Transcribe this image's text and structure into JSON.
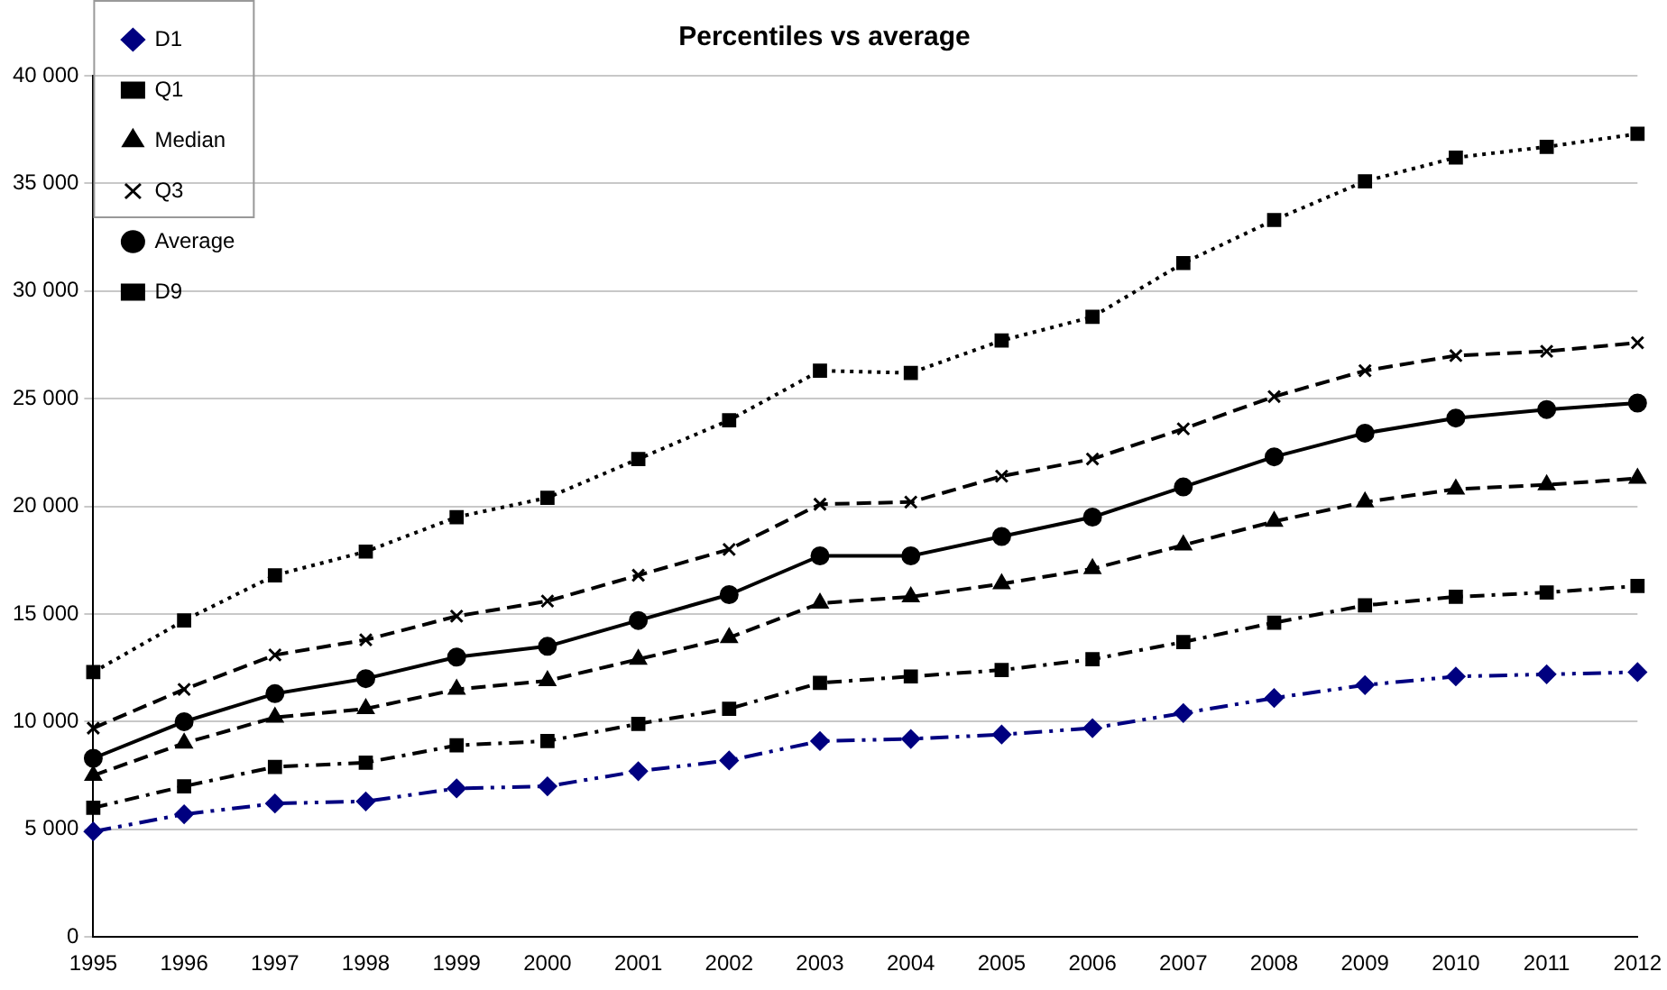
{
  "chart_data": {
    "type": "line",
    "title": "Percentiles vs average",
    "categories": [
      "1995",
      "1996",
      "1997",
      "1998",
      "1999",
      "2000",
      "2001",
      "2002",
      "2003",
      "2004",
      "2005",
      "2006",
      "2007",
      "2008",
      "2009",
      "2010",
      "2011",
      "2012"
    ],
    "series": [
      {
        "name": "D1",
        "color": "#000080",
        "marker": "diamond",
        "line_style": "dashdotdot",
        "values": [
          4900,
          5700,
          6200,
          6300,
          6900,
          7000,
          7700,
          8200,
          9100,
          9200,
          9400,
          9700,
          10400,
          11100,
          11700,
          12100,
          12200,
          12300
        ]
      },
      {
        "name": "Q1",
        "color": "#000000",
        "marker": "square",
        "line_style": "dashdot",
        "values": [
          6000,
          7000,
          7900,
          8100,
          8900,
          9100,
          9900,
          10600,
          11800,
          12100,
          12400,
          12900,
          13700,
          14600,
          15400,
          15800,
          16000,
          16300
        ]
      },
      {
        "name": "Median",
        "color": "#000000",
        "marker": "triangle",
        "line_style": "dashed",
        "values": [
          7500,
          9000,
          10200,
          10600,
          11500,
          11900,
          12900,
          13900,
          15500,
          15800,
          16400,
          17100,
          18200,
          19300,
          20200,
          20800,
          21000,
          21300
        ]
      },
      {
        "name": "Q3",
        "color": "#000000",
        "marker": "cross",
        "line_style": "dashed",
        "values": [
          9700,
          11500,
          13100,
          13800,
          14900,
          15600,
          16800,
          18000,
          20100,
          20200,
          21400,
          22200,
          23600,
          25100,
          26300,
          27000,
          27200,
          27600
        ]
      },
      {
        "name": "Average",
        "color": "#000000",
        "marker": "circle",
        "line_style": "solid",
        "values": [
          8300,
          10000,
          11300,
          12000,
          13000,
          13500,
          14700,
          15900,
          17700,
          17700,
          18600,
          19500,
          20900,
          22300,
          23400,
          24100,
          24500,
          24800
        ]
      },
      {
        "name": "D9",
        "color": "#000000",
        "marker": "square",
        "line_style": "dotted",
        "values": [
          12300,
          14700,
          16800,
          17900,
          19500,
          20400,
          22200,
          24000,
          26300,
          26200,
          27700,
          28800,
          31300,
          33300,
          35100,
          36200,
          36700,
          37300
        ]
      }
    ],
    "ylim": [
      0,
      40000
    ],
    "yticks": [
      0,
      {
        "value": 5000,
        "label": "5 000"
      },
      {
        "value": 10000,
        "label": "10 000"
      },
      {
        "value": 15000,
        "label": "15 000"
      },
      {
        "value": 20000,
        "label": "20 000"
      },
      {
        "value": 25000,
        "label": "25 000"
      },
      {
        "value": 30000,
        "label": "30 000"
      },
      {
        "value": 35000,
        "label": "35 000"
      },
      {
        "value": 40000,
        "label": "40 000"
      }
    ],
    "grid": "y",
    "legend": "top left"
  }
}
